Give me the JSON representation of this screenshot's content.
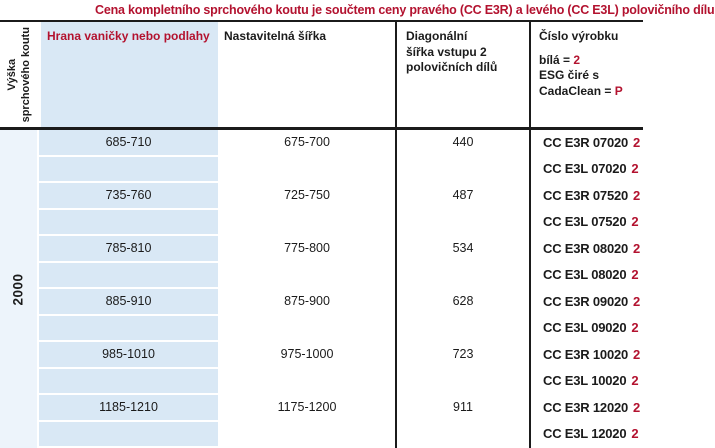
{
  "title": "Cena kompletního sprchového koutu je součtem ceny pravého (CC E3R) a levého (CC E3L) polovičního dílu",
  "colors": {
    "accent_red": "#b3122f",
    "column_blue": "#d9e8f5",
    "row_light_blue": "#e6effa",
    "height_column_blue": "#edf4fb",
    "line_black": "#1b1b1b"
  },
  "header": {
    "vyska_line1": "Výška",
    "vyska_line2": "sprchového koutu",
    "col_hrana": "Hrana vaničky nebo podlahy",
    "col_sirka": "Nastavitelná šířka",
    "col_diag_line1": "Diagonální",
    "col_diag_line2": "šířka vstupu 2",
    "col_diag_line3": "polovičních dílů",
    "col_cislo": "Číslo výrobku",
    "legend_bila_label": "bílá = ",
    "legend_bila_value": "2",
    "legend_esg": "ESG čiré s",
    "legend_cada_label": "CadaClean = ",
    "legend_cada_value": "P"
  },
  "vyska_value": "2000",
  "rows": [
    {
      "hrana": "685-710",
      "sirka": "675-700",
      "diag": "440",
      "code": "CC E3R 07020",
      "suffix": "2"
    },
    {
      "hrana": "",
      "sirka": "",
      "diag": "",
      "code": "CC E3L 07020",
      "suffix": "2"
    },
    {
      "hrana": "735-760",
      "sirka": "725-750",
      "diag": "487",
      "code": "CC E3R 07520",
      "suffix": "2"
    },
    {
      "hrana": "",
      "sirka": "",
      "diag": "",
      "code": "CC E3L 07520",
      "suffix": "2"
    },
    {
      "hrana": "785-810",
      "sirka": "775-800",
      "diag": "534",
      "code": "CC E3R 08020",
      "suffix": "2"
    },
    {
      "hrana": "",
      "sirka": "",
      "diag": "",
      "code": "CC E3L 08020",
      "suffix": "2"
    },
    {
      "hrana": "885-910",
      "sirka": "875-900",
      "diag": "628",
      "code": "CC E3R 09020",
      "suffix": "2"
    },
    {
      "hrana": "",
      "sirka": "",
      "diag": "",
      "code": "CC E3L 09020",
      "suffix": "2"
    },
    {
      "hrana": "985-1010",
      "sirka": "975-1000",
      "diag": "723",
      "code": "CC E3R 10020",
      "suffix": "2"
    },
    {
      "hrana": "",
      "sirka": "",
      "diag": "",
      "code": "CC E3L 10020",
      "suffix": "2"
    },
    {
      "hrana": "1185-1210",
      "sirka": "1175-1200",
      "diag": "911",
      "code": "CC E3R 12020",
      "suffix": "2"
    },
    {
      "hrana": "",
      "sirka": "",
      "diag": "",
      "code": "CC E3L 12020",
      "suffix": "2"
    }
  ]
}
